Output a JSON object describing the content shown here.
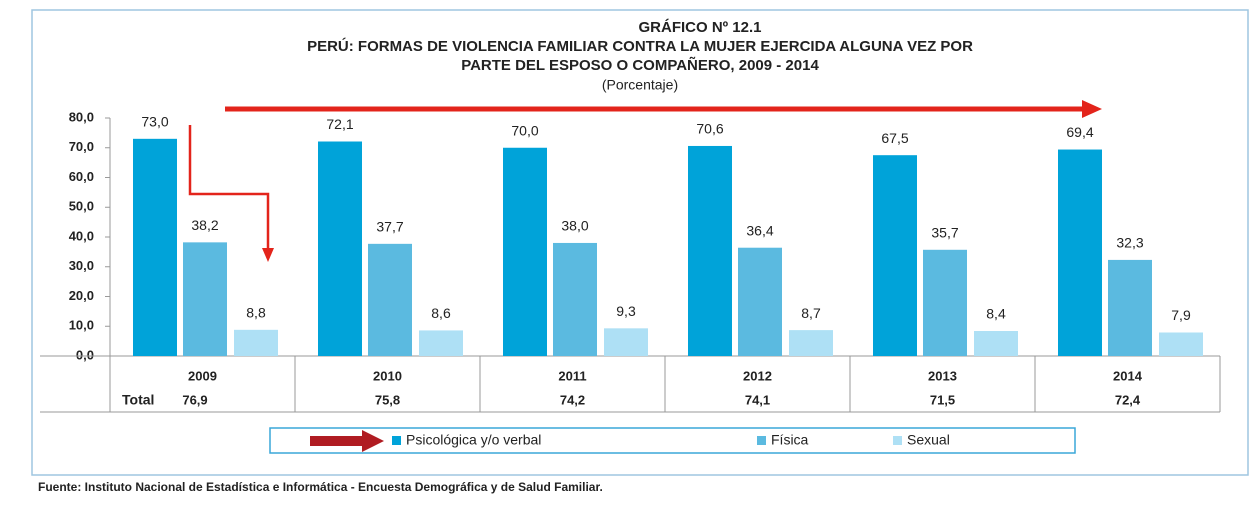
{
  "chart_data": {
    "type": "bar",
    "title": "GRÁFICO Nº 12.1",
    "title_lines": [
      "PERÚ: FORMAS DE VIOLENCIA FAMILIAR CONTRA LA MUJER EJERCIDA ALGUNA VEZ POR",
      "PARTE DEL ESPOSO O COMPAÑERO, 2009 - 2014"
    ],
    "subtitle": "(Porcentaje)",
    "categories": [
      "2009",
      "2010",
      "2011",
      "2012",
      "2013",
      "2014"
    ],
    "series": [
      {
        "name": "Psicológica y/o verbal",
        "color": "#00a3d9",
        "values": [
          73.0,
          72.1,
          70.0,
          70.6,
          67.5,
          69.4
        ],
        "value_labels": [
          "73,0",
          "72,1",
          "70,0",
          "70,6",
          "67,5",
          "69,4"
        ]
      },
      {
        "name": "Física",
        "color": "#5bbae0",
        "values": [
          38.2,
          37.7,
          38.0,
          36.4,
          35.7,
          32.3
        ],
        "value_labels": [
          "38,2",
          "37,7",
          "38,0",
          "36,4",
          "35,7",
          "32,3"
        ]
      },
      {
        "name": "Sexual",
        "color": "#aee0f5",
        "values": [
          8.8,
          8.6,
          9.3,
          8.7,
          8.4,
          7.9
        ],
        "value_labels": [
          "8,8",
          "8,6",
          "9,3",
          "8,7",
          "8,4",
          "7,9"
        ]
      }
    ],
    "ylim": [
      0,
      80
    ],
    "yticks": [
      {
        "value": 0,
        "label": "0,0"
      },
      {
        "value": 10,
        "label": "10,0"
      },
      {
        "value": 20,
        "label": "20,0"
      },
      {
        "value": 30,
        "label": "30,0"
      },
      {
        "value": 40,
        "label": "40,0"
      },
      {
        "value": 50,
        "label": "50,0"
      },
      {
        "value": 60,
        "label": "60,0"
      },
      {
        "value": 70,
        "label": "70,0"
      },
      {
        "value": 80,
        "label": "80,0"
      }
    ],
    "total_label": "Total",
    "totals": [
      "76,9",
      "75,8",
      "74,2",
      "74,1",
      "71,5",
      "72,4"
    ],
    "source": "Fuente: Instituto Nacional de Estadística e Informática - Encuesta  Demográfica y de Salud Familiar."
  }
}
